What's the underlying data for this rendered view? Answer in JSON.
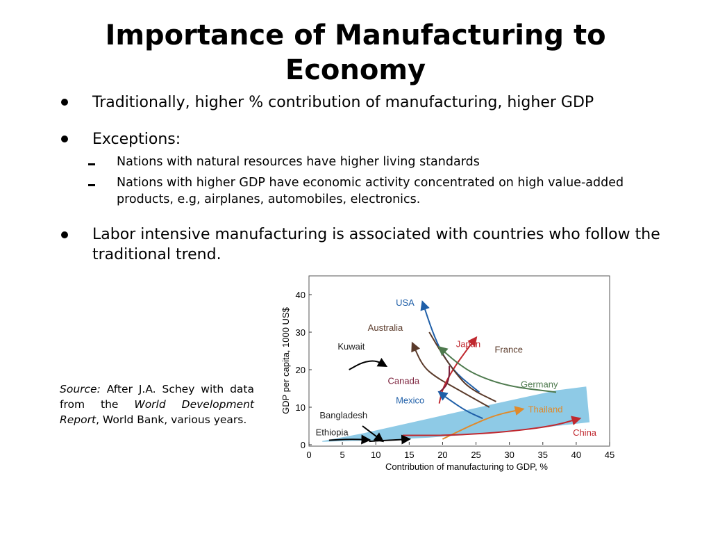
{
  "slide": {
    "title_line1": "Importance of Manufacturing to",
    "title_line2": "Economy",
    "bullets": [
      "Traditionally, higher % contribution of manufacturing, higher GDP",
      "Exceptions:",
      "Labor intensive manufacturing is associated with countries who follow the",
      "traditional trend."
    ],
    "sub_bullets": [
      "Nations with natural resources have higher living standards",
      "Nations with higher GDP have economic activity concentrated on high value-added",
      "products, e.g, airplanes, automobiles, electronics."
    ],
    "source": {
      "label": "Source:",
      "text1": " After J.A. Schey with data from the ",
      "work": "World Development Report",
      "text2": ", World Bank, various years."
    }
  },
  "chart_data": {
    "type": "line",
    "xlabel": "Contribution of manufacturing to GDP, %",
    "ylabel": "GDP per capita, 1000 US$",
    "xlim": [
      0,
      45
    ],
    "ylim": [
      0,
      45
    ],
    "x_ticks": [
      "0",
      "5",
      "10",
      "15",
      "20",
      "25",
      "30",
      "35",
      "40",
      "45"
    ],
    "y_ticks": [
      "0",
      "10",
      "20",
      "30",
      "40"
    ],
    "grid": false,
    "band_color": "#8ecae6",
    "series": [
      {
        "name": "USA",
        "color": "#1f5fa8",
        "points": [
          [
            17,
            38
          ],
          [
            18.5,
            30
          ],
          [
            20,
            24
          ],
          [
            22,
            19
          ],
          [
            25.5,
            14
          ]
        ],
        "arrow": "start",
        "label_pos": [
          13,
          37
        ]
      },
      {
        "name": "Australia",
        "color": "#5a3a2a",
        "points": [
          [
            15.5,
            27
          ],
          [
            17,
            21
          ],
          [
            19,
            18
          ],
          [
            22,
            15
          ],
          [
            27,
            10
          ]
        ],
        "arrow": "start",
        "label_pos": [
          8.8,
          30.4
        ]
      },
      {
        "name": "Japan",
        "color": "#c0282f",
        "points": [
          [
            19.5,
            11
          ],
          [
            20,
            15
          ],
          [
            21.5,
            20
          ],
          [
            23.5,
            25
          ],
          [
            25,
            28.5
          ]
        ],
        "arrow": "end",
        "label_pos": [
          22,
          26
        ]
      },
      {
        "name": "France",
        "color": "#5a3a2a",
        "points": [
          [
            18,
            30
          ],
          [
            20,
            24
          ],
          [
            22,
            19
          ],
          [
            24,
            15
          ],
          [
            28,
            11.5
          ]
        ],
        "arrow": "none",
        "label_pos": [
          27.8,
          24.5
        ]
      },
      {
        "name": "Germany",
        "color": "#4e7a4e",
        "points": [
          [
            19.5,
            26
          ],
          [
            22,
            22
          ],
          [
            25,
            18.5
          ],
          [
            30,
            15.5
          ],
          [
            37,
            14
          ]
        ],
        "arrow": "start",
        "label_pos": [
          31.7,
          15.3
        ]
      },
      {
        "name": "Canada",
        "color": "#7a1f3a",
        "points": [
          [
            19.5,
            14
          ],
          [
            20.5,
            15.5
          ],
          [
            21,
            18
          ],
          [
            21,
            21
          ]
        ],
        "arrow": "none",
        "label_pos": [
          11.8,
          16.2
        ]
      },
      {
        "name": "Mexico",
        "color": "#1f5fa8",
        "points": [
          [
            26,
            7
          ],
          [
            23.5,
            9
          ],
          [
            21,
            12
          ],
          [
            19.5,
            14
          ]
        ],
        "arrow": "end",
        "label_pos": [
          13,
          11
        ]
      },
      {
        "name": "Thailand",
        "color": "#e08a2a",
        "points": [
          [
            20,
            1.5
          ],
          [
            24,
            5
          ],
          [
            28,
            8
          ],
          [
            32,
            9.5
          ]
        ],
        "arrow": "end",
        "label_pos": [
          32.8,
          8.6
        ]
      },
      {
        "name": "China",
        "color": "#c0282f",
        "points": [
          [
            14,
            2.5
          ],
          [
            22,
            2.5
          ],
          [
            30,
            3.5
          ],
          [
            36.5,
            5
          ],
          [
            40.5,
            7
          ]
        ],
        "arrow": "end",
        "label_pos": [
          39.5,
          2.4
        ]
      },
      {
        "name": "Kuwait",
        "color": "#000000",
        "points": [
          [
            6,
            20
          ],
          [
            8,
            22
          ],
          [
            10,
            22.5
          ],
          [
            11.5,
            21
          ]
        ],
        "arrow": "end",
        "label_pos": [
          4.3,
          25.4
        ]
      },
      {
        "name": "Bangladesh",
        "color": "#000000",
        "points": [
          [
            8,
            5
          ],
          [
            9.5,
            3
          ],
          [
            11,
            1
          ]
        ],
        "arrow": "end",
        "label_pos": [
          1.6,
          7
        ]
      },
      {
        "name": "Ethiopia",
        "color": "#000000",
        "points": [
          [
            3,
            1.2
          ],
          [
            6,
            1.5
          ],
          [
            9,
            1.3
          ]
        ],
        "arrow": "end",
        "label_pos": [
          1,
          2.5
        ]
      },
      {
        "name": "",
        "color": "#000000",
        "points": [
          [
            9,
            0.9
          ],
          [
            12,
            1.2
          ],
          [
            15,
            1.5
          ]
        ],
        "arrow": "end",
        "label_pos": null
      }
    ]
  }
}
